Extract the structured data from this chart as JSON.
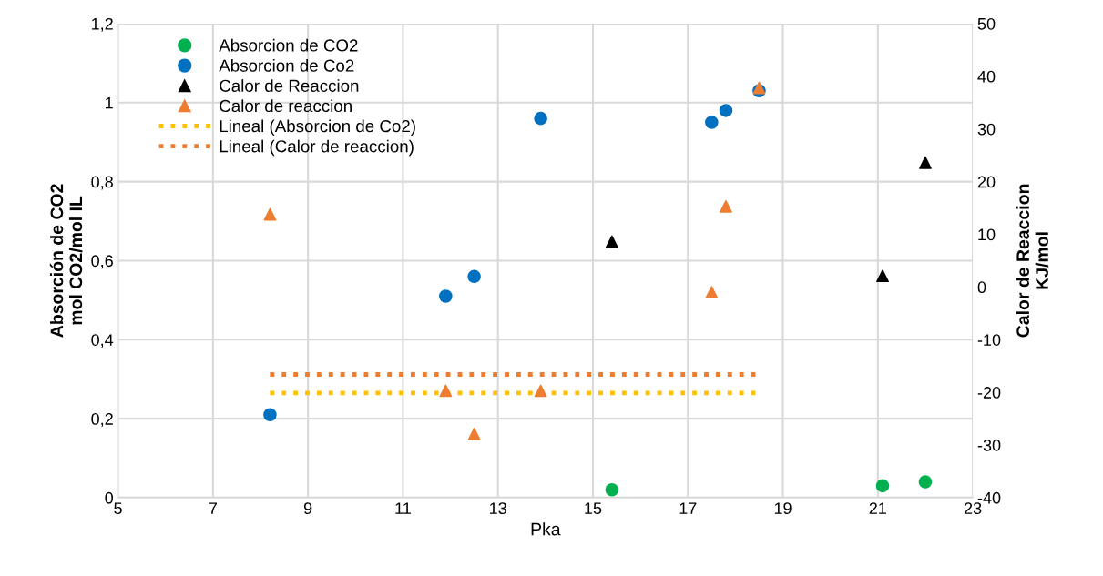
{
  "chart_data": {
    "type": "scatter",
    "xlabel": "Pka",
    "ylabel": "Absorción de CO2\nmol CO2/mol IL",
    "y2label": "Calor de Reaccion\nKJ/mol",
    "xlim": [
      5,
      23
    ],
    "xticks": [
      5,
      7,
      9,
      11,
      13,
      15,
      17,
      19,
      21,
      23
    ],
    "ylim": [
      0,
      1.2
    ],
    "yticks": [
      0,
      {
        "value": 0.2,
        "label": "0,2"
      },
      {
        "value": 0.4,
        "label": "0,4"
      },
      {
        "value": 0.6,
        "label": "0,6"
      },
      {
        "value": 0.8,
        "label": "0,8"
      },
      1,
      {
        "value": 1.2,
        "label": "1,2"
      }
    ],
    "y2lim": [
      -40,
      50
    ],
    "y2ticks": [
      -40,
      -30,
      -20,
      -10,
      0,
      10,
      20,
      30,
      40,
      50
    ],
    "grid": true,
    "legend": "top left",
    "series": [
      {
        "name": "Absorcion de CO2",
        "marker": "circle",
        "color": "#00b050",
        "x": [
          15.4,
          21.1,
          22
        ],
        "values": [
          0.02,
          0.03,
          0.04
        ]
      },
      {
        "name": "Absorcion de Co2",
        "marker": "circle",
        "color": "#0070c0",
        "x": [
          8.2,
          11.9,
          12.5,
          13.9,
          17.5,
          17.8,
          18.5
        ],
        "values": [
          0.21,
          0.51,
          0.56,
          0.96,
          0.95,
          0.98,
          1.03
        ]
      },
      {
        "name": "Calor de Reaccion",
        "marker": "triangle",
        "axis": "y2",
        "color": "#000000",
        "x": [
          15.4,
          21.1,
          22
        ],
        "values": [
          8.6,
          2.1,
          23.6
        ]
      },
      {
        "name": "Calor de reaccion",
        "marker": "triangle",
        "axis": "y2",
        "color": "#ed7d31",
        "x": [
          8.2,
          11.9,
          12.5,
          13.9,
          17.5,
          17.8,
          18.5
        ],
        "values": [
          13.8,
          -19.7,
          -27.9,
          -19.7,
          -1.0,
          15.3,
          37.8
        ]
      },
      {
        "name": "Lineal (Absorcion de Co2)",
        "type": "line",
        "marker": "none",
        "line_style": "dotted",
        "color": "#ffc000",
        "x": [
          8.2,
          18.5
        ],
        "values": [
          0.265,
          0.265
        ]
      },
      {
        "name": "Lineal (Calor de reaccion)",
        "type": "line",
        "marker": "none",
        "line_style": "dotted",
        "axis": "y2",
        "color": "#ed7d31",
        "x": [
          8.2,
          18.5
        ],
        "values": [
          -16.6,
          -16.6
        ]
      }
    ]
  }
}
